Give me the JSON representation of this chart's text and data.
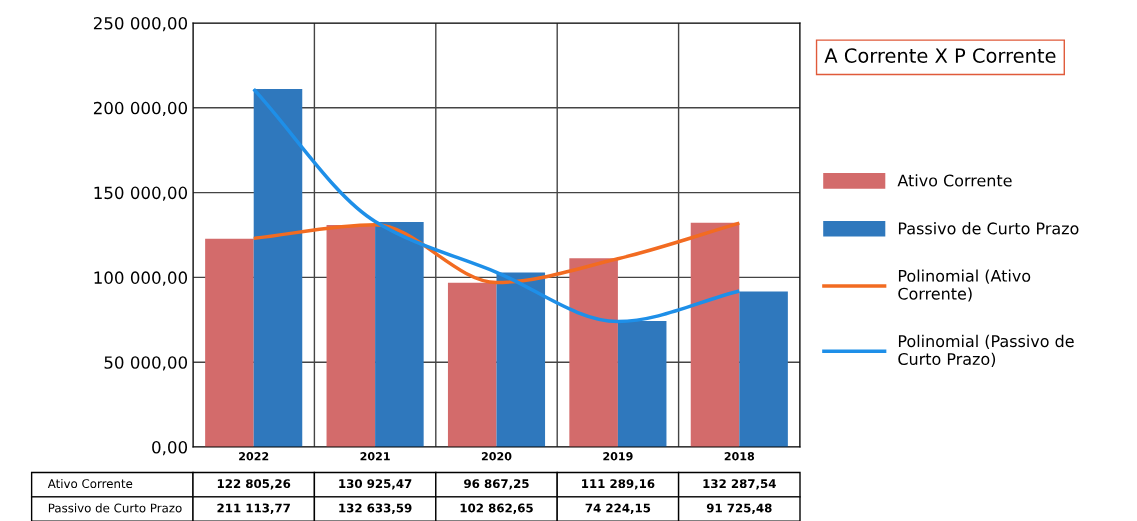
{
  "chart_data": {
    "type": "bar",
    "title": "A Corrente X P Corrente",
    "categories": [
      "2022",
      "2021",
      "2020",
      "2019",
      "2018"
    ],
    "series": [
      {
        "name": "Ativo Corrente",
        "color": "#d36b6b",
        "values": [
          122805.26,
          130925.47,
          96867.25,
          111289.16,
          132287.54
        ],
        "value_labels": [
          "122 805,26",
          "130 925,47",
          "96 867,25",
          "111 289,16",
          "132 287,54"
        ]
      },
      {
        "name": "Passivo de Curto Prazo",
        "color": "#2f78bd",
        "values": [
          211113.77,
          132633.59,
          102862.65,
          74224.15,
          91725.48
        ],
        "value_labels": [
          "211 113,77",
          "132 633,59",
          "102 862,65",
          "74 224,15",
          "91 725,48"
        ]
      },
      {
        "name": "Polinomial (Ativo Corrente)",
        "type": "line",
        "color": "#f26b21",
        "values": [
          123000,
          131000,
          97000,
          111000,
          132000
        ]
      },
      {
        "name": "Polinomial (Passivo de Curto Prazo)",
        "type": "line",
        "color": "#1e8fe8",
        "values": [
          211000,
          133000,
          103000,
          74000,
          92000
        ]
      }
    ],
    "ylim": [
      0,
      250000
    ],
    "yticks": [
      {
        "value": 0,
        "label": "0,00"
      },
      {
        "value": 50000,
        "label": "50 000,00"
      },
      {
        "value": 100000,
        "label": "100 000,00"
      },
      {
        "value": 150000,
        "label": "150 000,00"
      },
      {
        "value": 200000,
        "label": "200 000,00"
      },
      {
        "value": 250000,
        "label": "250 000,00"
      }
    ],
    "grid": true,
    "legend": "right",
    "line_style": "solid",
    "marker": "none"
  }
}
